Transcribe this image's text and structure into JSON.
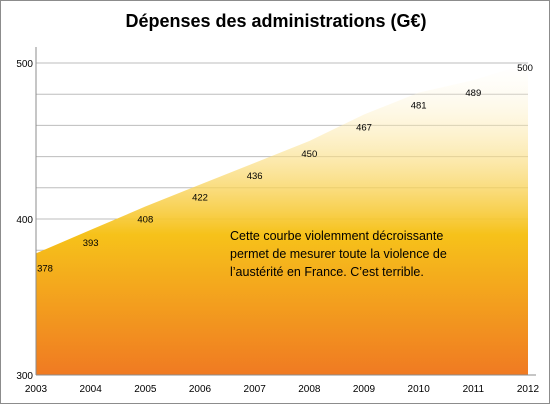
{
  "chart_data": {
    "type": "area",
    "title": "Dépenses des administrations (G€)",
    "xlabel": "",
    "ylabel": "",
    "x": [
      2003,
      2004,
      2005,
      2006,
      2007,
      2008,
      2009,
      2010,
      2011,
      2012
    ],
    "series": [
      {
        "values": [
          378,
          393,
          408,
          422,
          436,
          450,
          467,
          481,
          489,
          500
        ]
      }
    ],
    "ylim": [
      300,
      500
    ],
    "y_ticks": [
      "300",
      "400",
      "500"
    ],
    "x_ticks": [
      "2003",
      "2004",
      "2005",
      "2006",
      "2007",
      "2008",
      "2009",
      "2010",
      "2011",
      "2012"
    ],
    "data_labels": [
      "378",
      "393",
      "408",
      "422",
      "436",
      "450",
      "467",
      "481",
      "489",
      "500"
    ],
    "grid": true,
    "legend": "none",
    "annotation": "Cette courbe violemment décroissante\npermet de mesurer toute la violence de\nl’austérité en France. C’est terrible.",
    "colors": {
      "fill_top": "#ffffff",
      "fill_mid": "#f6c21a",
      "fill_bottom": "#f07a22"
    }
  }
}
